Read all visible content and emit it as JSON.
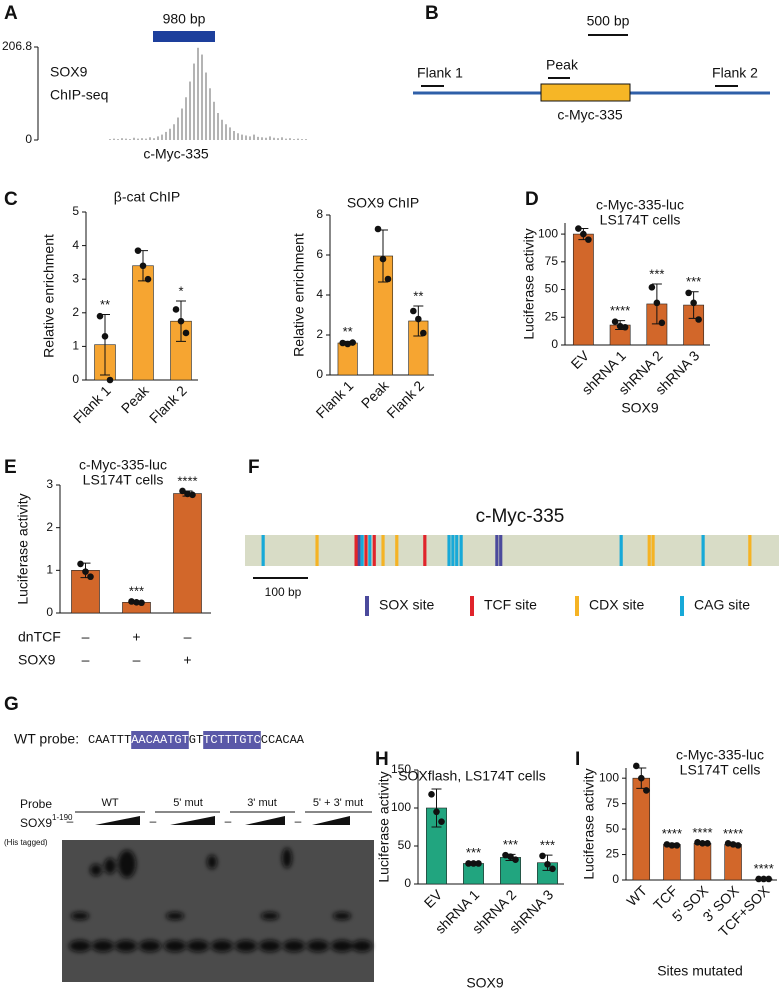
{
  "letters": [
    "A",
    "B",
    "C",
    "D",
    "E",
    "F",
    "G",
    "H",
    "I"
  ],
  "panel_a": {
    "title_lines": [
      "SOX9",
      "ChIP-seq"
    ],
    "scale_label": "980 bp",
    "peak_label": "c-Myc-335",
    "ylim": [
      0,
      206.8
    ],
    "yticks": [
      0,
      206.8
    ],
    "values": [
      2,
      3,
      2,
      4,
      3,
      2,
      5,
      3,
      4,
      3,
      6,
      4,
      8,
      12,
      18,
      25,
      35,
      50,
      70,
      95,
      130,
      170,
      205,
      190,
      150,
      115,
      85,
      60,
      45,
      35,
      28,
      20,
      15,
      12,
      10,
      8,
      12,
      7,
      6,
      5,
      8,
      5,
      4,
      6,
      3,
      4,
      2,
      3,
      2,
      2
    ]
  },
  "panel_b": {
    "scale_label": "500 bp",
    "flank1": "Flank 1",
    "peak": "Peak",
    "flank2": "Flank 2",
    "region": "c-Myc-335"
  },
  "chart_data": [
    {
      "type": "bar",
      "title": [
        "β-cat ChIP"
      ],
      "y_label": "Relative enrichment",
      "categories": [
        "Flank 1",
        "Peak",
        "Flank 2"
      ],
      "values": [
        1.05,
        3.4,
        1.75
      ],
      "errors": [
        0.9,
        0.45,
        0.6
      ],
      "points": [
        [
          1.9,
          1.3,
          0
        ],
        [
          3.85,
          3.4,
          3.0
        ],
        [
          2.1,
          1.75,
          1.4
        ]
      ],
      "significance": [
        "**",
        null,
        "*"
      ],
      "color": "#f6a531",
      "ylim": [
        0,
        5
      ],
      "yticks": [
        0,
        1,
        2,
        3,
        4,
        5
      ]
    },
    {
      "type": "bar",
      "title": [
        "SOX9 ChIP"
      ],
      "y_label": "Relative enrichment",
      "categories": [
        "Flank 1",
        "Peak",
        "Flank 2"
      ],
      "values": [
        1.6,
        5.95,
        2.7
      ],
      "errors": [
        0.08,
        1.3,
        0.75
      ],
      "points": [
        [
          1.6,
          1.55,
          1.62
        ],
        [
          7.3,
          5.8,
          4.8
        ],
        [
          3.2,
          2.8,
          2.1
        ]
      ],
      "significance": [
        "**",
        null,
        "**"
      ],
      "color": "#f6a531",
      "ylim": [
        0,
        8
      ],
      "yticks": [
        0,
        2,
        4,
        6,
        8
      ]
    },
    {
      "type": "bar",
      "title": [
        "c-Myc-335-luc",
        "LS174T cells"
      ],
      "y_label": "Luciferase activity",
      "categories": [
        "EV",
        "shRNA 1",
        "shRNA 2",
        "shRNA 3"
      ],
      "x_label": "SOX9",
      "values": [
        100,
        18,
        37,
        36
      ],
      "errors": [
        5,
        4,
        18,
        12
      ],
      "points": [
        [
          105,
          100,
          95
        ],
        [
          21,
          17,
          16
        ],
        [
          52,
          38,
          20
        ],
        [
          47,
          38,
          23
        ]
      ],
      "significance": [
        null,
        "****",
        "***",
        "***"
      ],
      "color": "#d2672a",
      "ylim": [
        0,
        110
      ],
      "yticks": [
        0,
        25,
        50,
        75,
        100
      ]
    },
    {
      "type": "bar",
      "title": [
        "c-Myc-335-luc",
        "LS174T cells"
      ],
      "y_label": "Luciferase activity",
      "rows": [
        {
          "name": "dnTCF",
          "marks": [
            "–",
            "+",
            "–"
          ]
        },
        {
          "name": "SOX9",
          "marks": [
            "–",
            "–",
            "+"
          ]
        }
      ],
      "values": [
        1.0,
        0.25,
        2.8
      ],
      "errors": [
        0.17,
        0.03,
        0.06
      ],
      "points": [
        [
          1.15,
          0.97,
          0.85
        ],
        [
          0.27,
          0.25,
          0.24
        ],
        [
          2.86,
          2.79,
          2.77
        ]
      ],
      "significance": [
        null,
        "***",
        "****"
      ],
      "color": "#d2672a",
      "ylim": [
        0,
        3
      ],
      "yticks": [
        0,
        1,
        2,
        3
      ]
    },
    {
      "type": "bar",
      "title": [
        "SOXflash, LS174T cells"
      ],
      "y_label": "Luciferase activity",
      "categories": [
        "EV",
        "shRNA 1",
        "shRNA 2",
        "shRNA 3"
      ],
      "x_label": "SOX9",
      "values": [
        100,
        27,
        35,
        28
      ],
      "errors": [
        25,
        1,
        4,
        10
      ],
      "points": [
        [
          118,
          95,
          82
        ],
        [
          27,
          27,
          27
        ],
        [
          38,
          36,
          32
        ],
        [
          37,
          26,
          20
        ]
      ],
      "significance": [
        null,
        "***",
        "***",
        "***"
      ],
      "color": "#21a57f",
      "ylim": [
        0,
        150
      ],
      "yticks": [
        0,
        50,
        100,
        150
      ]
    },
    {
      "type": "bar",
      "title": [
        "c-Myc-335-luc",
        "LS174T cells"
      ],
      "y_label": "Luciferase activity",
      "categories": [
        "WT",
        "TCF",
        "5' SOX",
        "3' SOX",
        "TCF+SOX"
      ],
      "x_label": "Sites mutated",
      "values": [
        100,
        35,
        36,
        35,
        1
      ],
      "errors": [
        10,
        1,
        1,
        1,
        0.5
      ],
      "points": [
        [
          112,
          100,
          88
        ],
        [
          35,
          34,
          34
        ],
        [
          37,
          36,
          36
        ],
        [
          36,
          35,
          34
        ],
        [
          1,
          1,
          1
        ]
      ],
      "significance": [
        null,
        "****",
        "****",
        "****",
        "****"
      ],
      "color": "#d2672a",
      "ylim": [
        0,
        110
      ],
      "yticks": [
        0,
        25,
        50,
        75,
        100
      ]
    }
  ],
  "panel_f": {
    "title": "c-Myc-335",
    "scale_label": "100 bp",
    "xlim": [
      0,
      971
    ],
    "site_types": [
      {
        "name": "SOX site",
        "color": "#4b4a9c",
        "positions": [
          207,
          458,
          465
        ]
      },
      {
        "name": "TCF site",
        "color": "#e0242b",
        "positions": [
          202,
          220,
          235,
          327
        ]
      },
      {
        "name": "CDX site",
        "color": "#f5b324",
        "positions": [
          131,
          251,
          276,
          735,
          742,
          918
        ]
      },
      {
        "name": "CAG site",
        "color": "#17a9d8",
        "positions": [
          33,
          213,
          227,
          371,
          378,
          385,
          393,
          684,
          833
        ]
      }
    ]
  },
  "panel_g": {
    "probe_label": "WT probe:",
    "probe_sequence": [
      {
        "text": "CAATTT",
        "highlight": false
      },
      {
        "text": "AACAATGT",
        "highlight": true
      },
      {
        "text": "GT",
        "highlight": false
      },
      {
        "text": "TCTTTGTC",
        "highlight": true
      },
      {
        "text": "CCACAA",
        "highlight": false
      }
    ],
    "row_probe": "Probe",
    "row_protein": "SOX9",
    "superscript": "1-190",
    "tag_note": "(His tagged)",
    "probes": [
      "WT",
      "5' mut",
      "3' mut",
      "5' + 3' mut"
    ],
    "minus": "–"
  }
}
